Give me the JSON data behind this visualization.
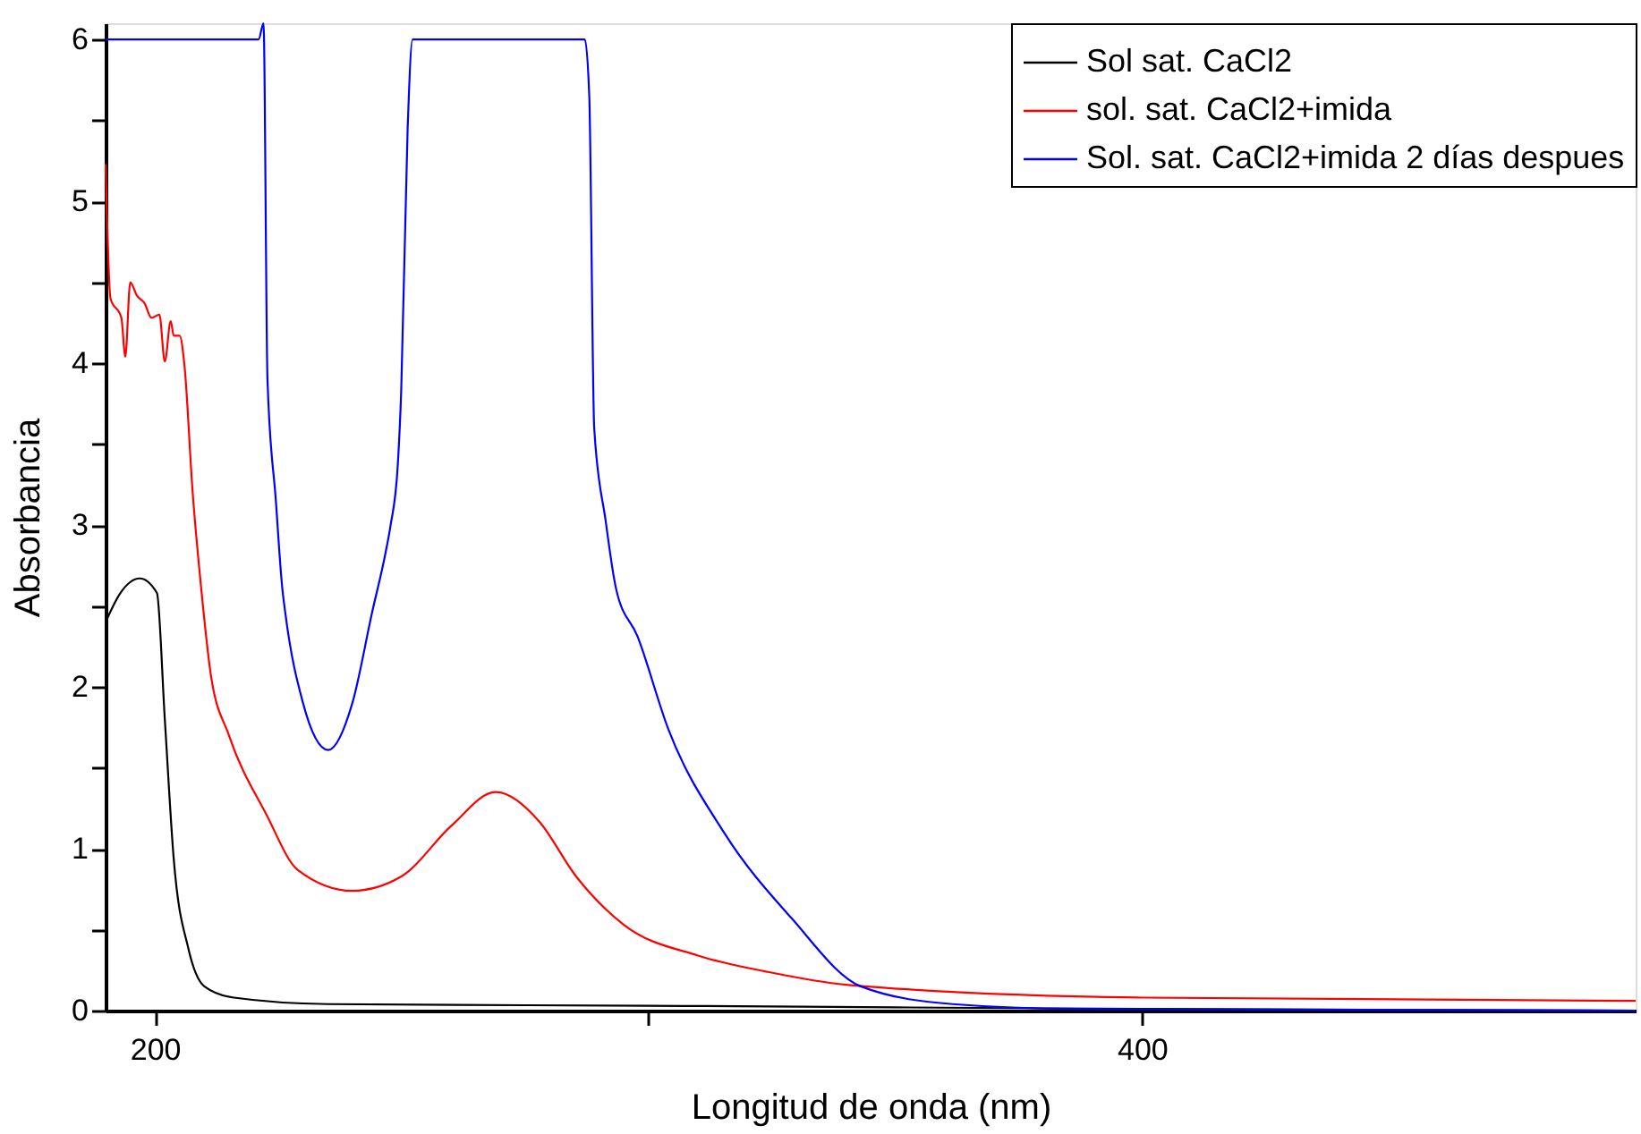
{
  "chart_data": {
    "type": "line",
    "xlabel": "Longitud de onda (nm)",
    "ylabel": "Absorbancia",
    "xlim": [
      190,
      500
    ],
    "ylim": [
      0,
      6.1
    ],
    "xticks": [
      200,
      {
        "value": 300,
        "label": null
      },
      400
    ],
    "yticks": [
      0,
      {
        "value": 0.5,
        "label": null
      },
      1,
      {
        "value": 1.5,
        "label": null
      },
      2,
      {
        "value": 2.5,
        "label": null
      },
      3,
      {
        "value": 3.5,
        "label": null
      },
      4,
      {
        "value": 4.5,
        "label": null
      },
      5,
      {
        "value": 5.5,
        "label": null
      },
      6
    ],
    "grid": false,
    "legend": "top right",
    "line_style": "solid",
    "series": [
      {
        "name": "Sol sat. CaCl2",
        "color": "#000000",
        "x": [
          190,
          193,
          196.9,
          200.4,
          202,
          203.8,
          206.8,
          210,
          216,
          235,
          300,
          350,
          400,
          500
        ],
        "values": [
          2.4,
          2.58,
          2.67,
          2.58,
          1.8,
          0.94,
          0.38,
          0.15,
          0.08,
          0.04,
          0.03,
          0.02,
          0.01,
          0
        ]
      },
      {
        "name": "sol. sat. CaCl2+imida",
        "color": "#ff0000",
        "x": [
          190,
          191,
          193.2,
          194,
          195,
          196.3,
          197.9,
          199.3,
          200.9,
          202,
          203.2,
          203.8,
          205,
          206,
          207.6,
          209.4,
          211.3,
          215,
          222.6,
          228.9,
          240,
          250,
          260,
          269,
          277.8,
          285.3,
          295,
          310,
          324,
          340,
          400,
          500
        ],
        "values": [
          5.23,
          4.4,
          4.28,
          4.04,
          4.5,
          4.42,
          4.37,
          4.28,
          4.3,
          4.01,
          4.26,
          4.17,
          4.17,
          3.98,
          3.22,
          2.6,
          2.08,
          1.7,
          1.21,
          0.87,
          0.74,
          0.83,
          1.14,
          1.35,
          1.17,
          0.83,
          0.53,
          0.34,
          0.24,
          0.16,
          0.08,
          0.06
        ]
      },
      {
        "name": "Sol. sat. CaCl2+imida 2 días despues",
        "color": "#0000ff",
        "x": [
          190,
          221,
          222,
          222.8,
          224.5,
          225.8,
          226.4,
          230,
          235.1,
          240,
          244,
          246.8,
          247.7,
          249.2,
          249.9,
          251.2,
          252.2,
          287.1,
          288,
          289,
          291.3,
          293.4,
          297.8,
          304,
          315.3,
          329,
          343,
          361.6,
          386.8,
          500
        ],
        "values": [
          6,
          6,
          6.1,
          3.9,
          3.15,
          2.61,
          2.46,
          1.9,
          1.61,
          1.9,
          2.46,
          2.84,
          2.99,
          3.37,
          3.83,
          5.45,
          6,
          6,
          5.65,
          3.6,
          3.03,
          2.61,
          2.31,
          1.74,
          1.1,
          0.57,
          0.15,
          0.04,
          0.01,
          0
        ]
      }
    ]
  }
}
